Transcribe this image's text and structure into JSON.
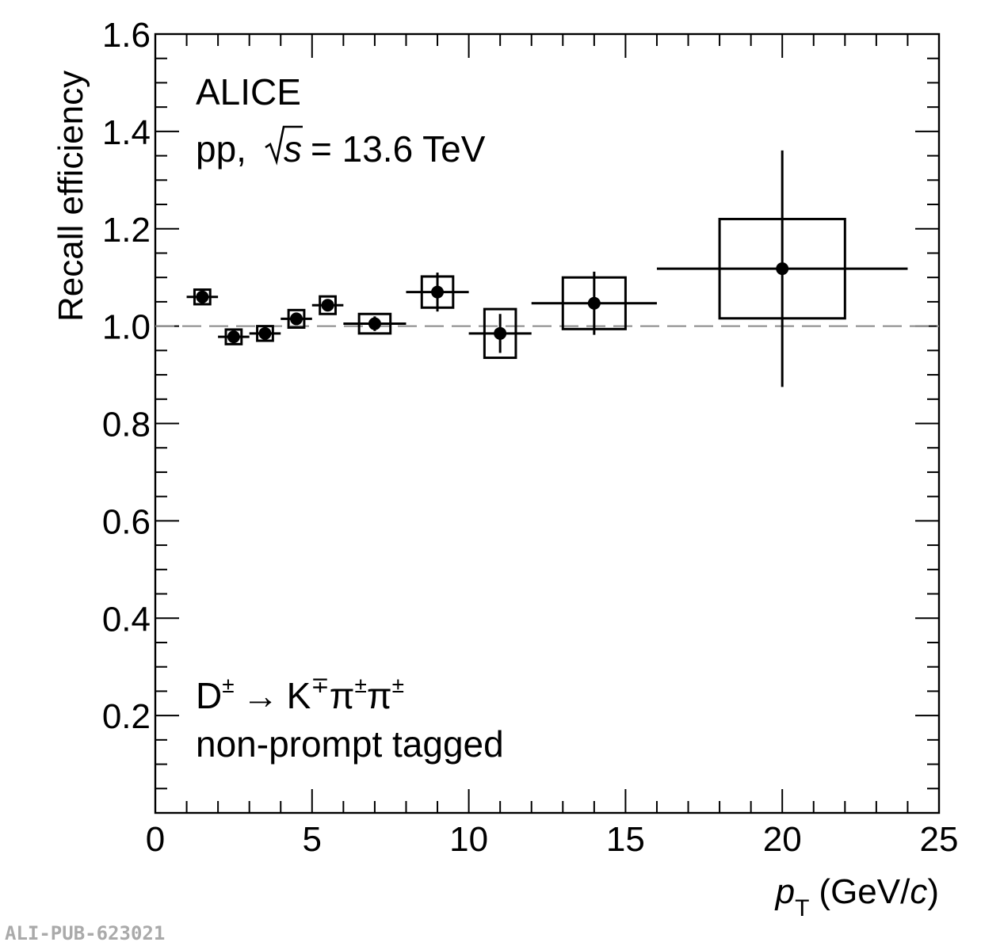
{
  "chart_data": {
    "type": "scatter",
    "xlabel": "p_T (GeV/c)",
    "xlabel_parts": {
      "var": "p",
      "sub": "T",
      "unit": "(GeV/",
      "unit_var": "c",
      "unit_end": ")"
    },
    "ylabel": "Recall efficiency",
    "xlim": [
      0,
      25
    ],
    "ylim": [
      0,
      1.6
    ],
    "x_ticks": [
      "0",
      "5",
      "10",
      "15",
      "20",
      "25"
    ],
    "y_ticks": [
      "0.2",
      "0.4",
      "0.6",
      "0.8",
      "1.0",
      "1.2",
      "1.4",
      "1.6"
    ],
    "reference_line": {
      "y": 1.0,
      "style": "dashed",
      "color": "#888888"
    },
    "annotations": {
      "experiment": "ALICE",
      "system_prefix": "pp,",
      "sqrt_var": "s",
      "system_suffix": "= 13.6 TeV",
      "decay_D": "D",
      "decay_D_sup": "±",
      "decay_arrow": "→",
      "decay_K": "K",
      "decay_K_sup": "∓",
      "decay_pi1": "π",
      "decay_pi1_sup": "±",
      "decay_pi2": "π",
      "decay_pi2_sup": "±",
      "tag": "non-prompt tagged"
    },
    "watermark": "ALI-PUB-623021",
    "points": [
      {
        "x": 1.5,
        "y": 1.06,
        "x_lo": 1,
        "x_hi": 2,
        "stat": 0.01,
        "sys": 0.015
      },
      {
        "x": 2.5,
        "y": 0.978,
        "x_lo": 2,
        "x_hi": 3,
        "stat": 0.01,
        "sys": 0.015
      },
      {
        "x": 3.5,
        "y": 0.985,
        "x_lo": 3,
        "x_hi": 4,
        "stat": 0.01,
        "sys": 0.015
      },
      {
        "x": 4.5,
        "y": 1.015,
        "x_lo": 4,
        "x_hi": 5,
        "stat": 0.012,
        "sys": 0.018
      },
      {
        "x": 5.5,
        "y": 1.043,
        "x_lo": 5,
        "x_hi": 6,
        "stat": 0.012,
        "sys": 0.018
      },
      {
        "x": 7.0,
        "y": 1.005,
        "x_lo": 6,
        "x_hi": 8,
        "stat": 0.015,
        "sys": 0.02
      },
      {
        "x": 9.0,
        "y": 1.07,
        "x_lo": 8,
        "x_hi": 10,
        "stat": 0.04,
        "sys": 0.032
      },
      {
        "x": 11.0,
        "y": 0.985,
        "x_lo": 10,
        "x_hi": 12,
        "stat": 0.04,
        "sys": 0.05
      },
      {
        "x": 14.0,
        "y": 1.047,
        "x_lo": 12,
        "x_hi": 16,
        "stat": 0.065,
        "sys": 0.053
      },
      {
        "x": 20.0,
        "y": 1.118,
        "x_lo": 16,
        "x_hi": 24,
        "stat": 0.243,
        "sys": 0.102
      }
    ],
    "sys_box_halfwidth": [
      0.25,
      0.25,
      0.25,
      0.25,
      0.25,
      0.5,
      0.5,
      0.5,
      1.0,
      2.0
    ],
    "grid": false,
    "legend": "none"
  }
}
